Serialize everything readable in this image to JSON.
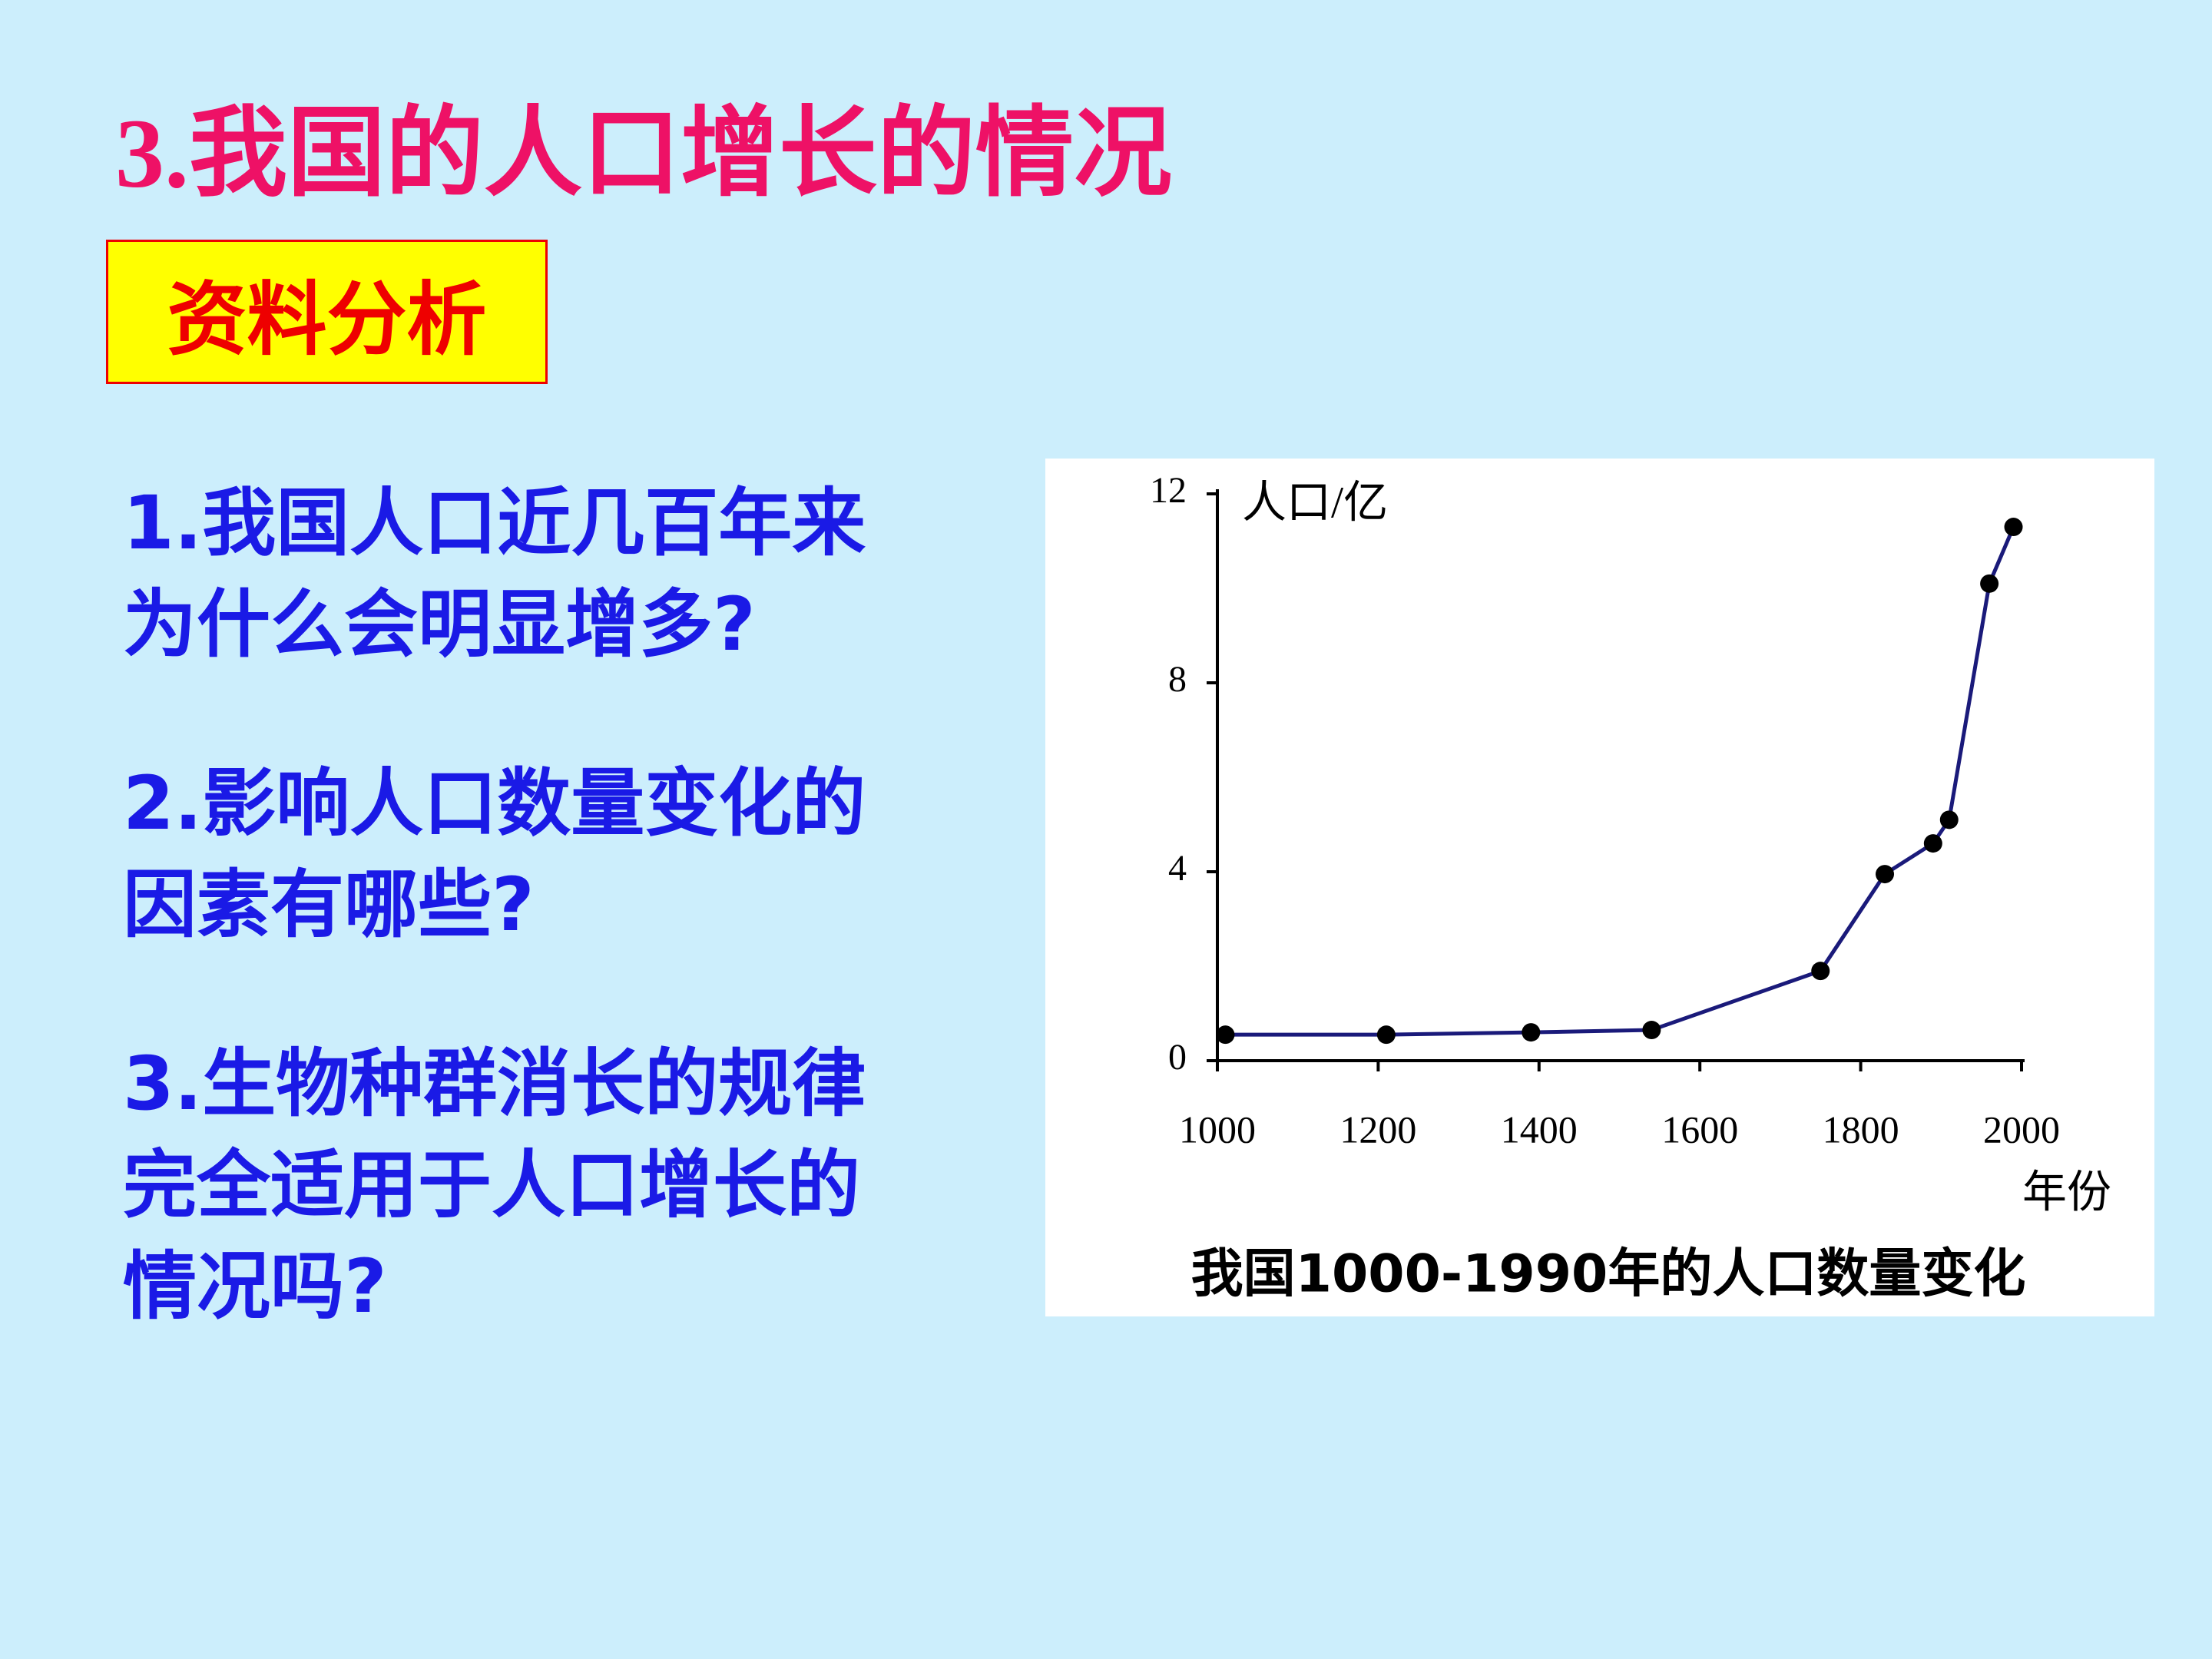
{
  "slide": {
    "title": "3.我国的人口增长的情况",
    "tag": "资料分析",
    "questions": [
      [
        "1.我国人口近几百年来",
        "为什么会明显增多?"
      ],
      [
        "2.影响人口数量变化的",
        "因素有哪些?"
      ],
      [
        "3.生物种群消长的规律",
        "完全适用于人口增长的",
        "情况吗?"
      ]
    ]
  },
  "chart_data": {
    "type": "line",
    "title": "我国1000-1990年的人口数量变化",
    "y_label": "人口/亿",
    "x_label": "年份",
    "x": [
      1010,
      1210,
      1390,
      1540,
      1750,
      1830,
      1890,
      1910,
      1960,
      1990
    ],
    "series": [
      {
        "name": "人口",
        "color": "#1a1a7a",
        "values": [
          0.55,
          0.55,
          0.6,
          0.65,
          1.9,
          3.95,
          4.6,
          5.1,
          10.1,
          11.3
        ]
      }
    ],
    "xlim": [
      1000,
      2000
    ],
    "xticks": [
      1000,
      1200,
      1400,
      1600,
      1800,
      2000
    ],
    "ylim": [
      0,
      12
    ],
    "yticks": [
      0,
      4,
      8,
      12
    ],
    "grid": false
  }
}
